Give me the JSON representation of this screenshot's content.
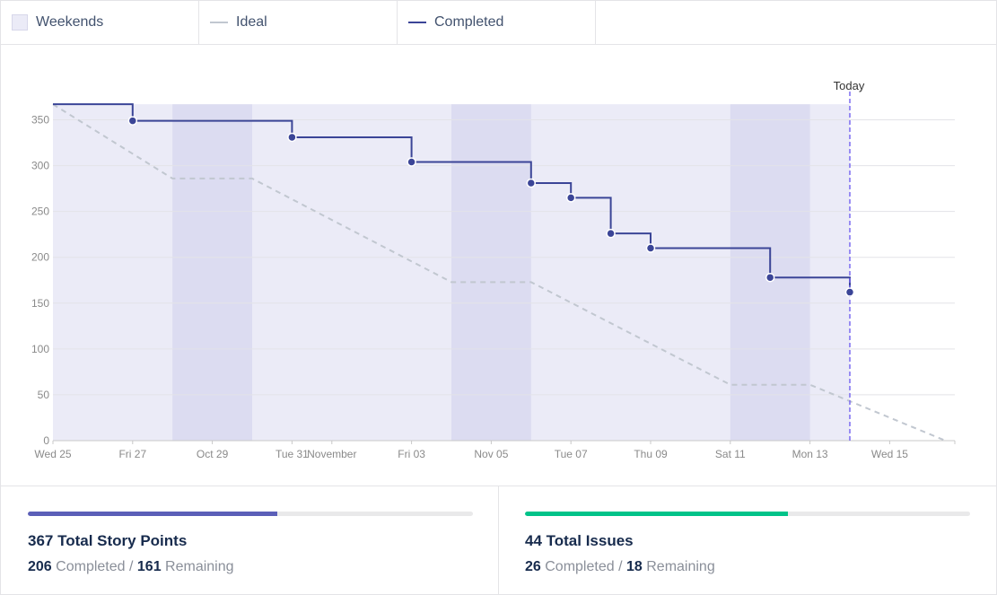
{
  "legend": {
    "weekends": "Weekends",
    "ideal": "Ideal",
    "completed": "Completed"
  },
  "colors": {
    "accent": "#3b4597",
    "ideal": "#c1c7d0",
    "weekend_band": "#dcdcf1",
    "plot_bg": "#ebebf7",
    "today_line": "#7b6bf0",
    "issues_bar": "#00c389",
    "points_bar": "#5b5fb8"
  },
  "chart_data": {
    "type": "line",
    "ylim": [
      0,
      370
    ],
    "y_ticks": [
      0,
      50,
      100,
      150,
      200,
      250,
      300,
      350
    ],
    "x_range_days": [
      0,
      20
    ],
    "x_ticks": [
      {
        "day": 0,
        "label": "Wed 25"
      },
      {
        "day": 2,
        "label": "Fri 27"
      },
      {
        "day": 4,
        "label": "Oct 29"
      },
      {
        "day": 6,
        "label": "Tue 31"
      },
      {
        "day": 7,
        "label": "November"
      },
      {
        "day": 9,
        "label": "Fri 03"
      },
      {
        "day": 11,
        "label": "Nov 05"
      },
      {
        "day": 13,
        "label": "Tue 07"
      },
      {
        "day": 15,
        "label": "Thu 09"
      },
      {
        "day": 17,
        "label": "Sat 11"
      },
      {
        "day": 19,
        "label": "Mon 13"
      },
      {
        "day": 21,
        "label": "Wed 15"
      }
    ],
    "weekends": [
      [
        3,
        5
      ],
      [
        10,
        12
      ],
      [
        17,
        19
      ]
    ],
    "today": {
      "day": 20,
      "label": "Today"
    },
    "series": [
      {
        "name": "Ideal",
        "style": "dashed",
        "points": [
          [
            0,
            367
          ],
          [
            3,
            286
          ],
          [
            5,
            286
          ],
          [
            10,
            173
          ],
          [
            12,
            173
          ],
          [
            17,
            61
          ],
          [
            19,
            61
          ],
          [
            22.4,
            0
          ]
        ]
      },
      {
        "name": "Completed",
        "style": "step",
        "start": [
          0,
          367
        ],
        "points": [
          [
            2,
            349
          ],
          [
            6,
            331
          ],
          [
            9,
            304
          ],
          [
            12,
            281
          ],
          [
            13,
            265
          ],
          [
            14,
            226
          ],
          [
            15,
            210
          ],
          [
            18,
            178
          ],
          [
            20,
            162
          ]
        ]
      }
    ]
  },
  "stats": {
    "points": {
      "title": "367 Total Story Points",
      "completed": "206",
      "completed_label": "Completed",
      "separator": "/",
      "remaining": "161",
      "remaining_label": "Remaining",
      "progress": 0.561
    },
    "issues": {
      "title": "44 Total Issues",
      "completed": "26",
      "completed_label": "Completed",
      "separator": "/",
      "remaining": "18",
      "remaining_label": "Remaining",
      "progress": 0.591
    }
  }
}
